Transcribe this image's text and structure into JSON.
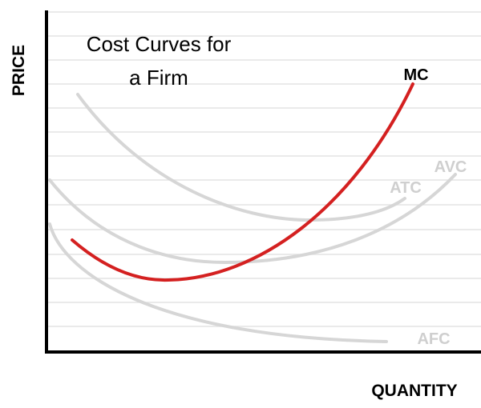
{
  "title_lines": [
    "Cost Curves for",
    "a Firm"
  ],
  "y_axis_label": "PRICE",
  "x_axis_label": "QUANTITY",
  "curves": [
    {
      "label": "MC"
    },
    {
      "label": "ATC"
    },
    {
      "label": "AVC"
    },
    {
      "label": "AFC"
    }
  ]
}
